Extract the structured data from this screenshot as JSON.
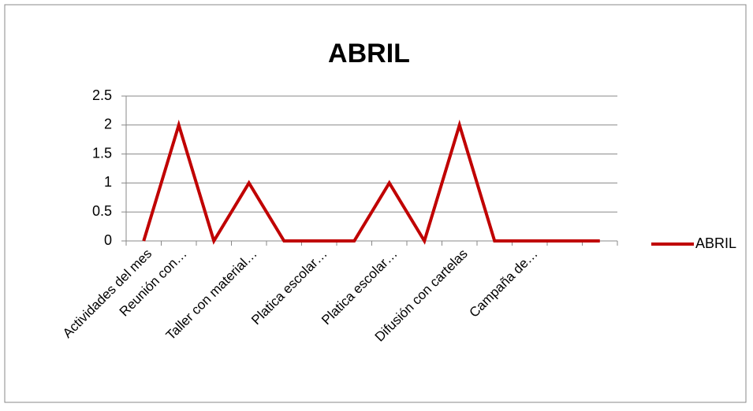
{
  "chart_data": {
    "type": "line",
    "title": "ABRIL",
    "categories": [
      "Actividades del mes",
      "Reunión con…",
      null,
      "Taller con material…",
      null,
      "Platica escolar…",
      null,
      "Platica escolar…",
      null,
      "Difusión con cartelas",
      null,
      "Campaña de…",
      null,
      null
    ],
    "series": [
      {
        "name": "ABRIL",
        "color": "#c00000",
        "values": [
          0,
          2,
          0,
          1,
          0,
          0,
          0,
          1,
          0,
          2,
          0,
          0,
          0,
          0
        ]
      }
    ],
    "ylim": [
      0,
      2.5
    ],
    "yticks": [
      0,
      0.5,
      1,
      1.5,
      2,
      2.5
    ],
    "grid": true,
    "legend": "right"
  }
}
